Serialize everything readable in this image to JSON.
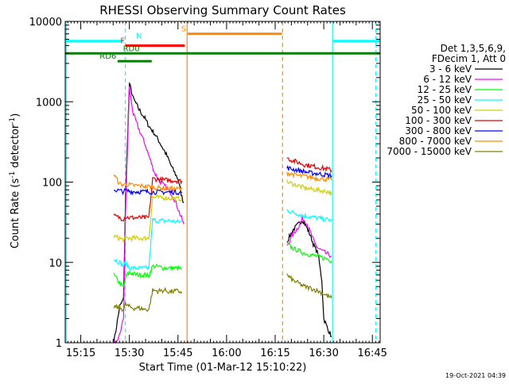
{
  "chart_data": {
    "type": "line",
    "title": "RHESSI Observing Summary Count Rates",
    "xlabel": "Start Time (01-Mar-12 15:10:22)",
    "ylabel_main": "Count Rate (s",
    "ylabel_sup1": "-1",
    "ylabel_mid": " detector",
    "ylabel_sup2": "-1",
    "ylabel_end": ")",
    "footer": "19-Oct-2021 04:39",
    "legend_header": [
      "Det 1,3,5,6,9,",
      "FDecim 1, Att 0"
    ],
    "xlim": [
      15.17,
      16.79
    ],
    "ylim_log10": [
      0,
      4
    ],
    "x_ticks": [
      {
        "label": "15:15",
        "t": 15.25
      },
      {
        "label": "15:30",
        "t": 15.5
      },
      {
        "label": "15:45",
        "t": 15.75
      },
      {
        "label": "16:00",
        "t": 16.0
      },
      {
        "label": "16:15",
        "t": 16.25
      },
      {
        "label": "16:30",
        "t": 16.5
      },
      {
        "label": "16:45",
        "t": 16.75
      }
    ],
    "y_ticks": [
      {
        "label": "1",
        "v": 1
      },
      {
        "label": "10",
        "v": 10
      },
      {
        "label": "100",
        "v": 100
      },
      {
        "label": "1000",
        "v": 1000
      },
      {
        "label": "10000",
        "v": 10000
      }
    ],
    "segments": [
      [
        15.42,
        15.78
      ],
      [
        16.31,
        16.54
      ]
    ],
    "vlines": [
      {
        "t": 15.175,
        "color": "#00ffff",
        "dashed": false
      },
      {
        "t": 15.479,
        "color": "#00ffff",
        "dashed": true
      },
      {
        "t": 15.797,
        "color": "#ff8c00",
        "dashed": false
      },
      {
        "t": 16.288,
        "color": "#ff8c00",
        "dashed": true
      },
      {
        "t": 16.545,
        "color": "#00ffff",
        "dashed": false
      },
      {
        "t": 16.768,
        "color": "#00ffff",
        "dashed": true
      }
    ],
    "flags": [
      {
        "label": "N",
        "color": "#00ffff",
        "segments": [
          [
            15.17,
            15.47
          ],
          [
            16.548,
            16.79
          ]
        ],
        "v": 5700,
        "label_t": 15.55
      },
      {
        "label": "S",
        "color": "#ff8c00",
        "segments": [
          [
            15.8,
            16.285
          ]
        ],
        "v": 7000,
        "label_t": 15.78
      },
      {
        "label": "F",
        "color": "#a05050",
        "segments": [],
        "v": 5000,
        "label_t": 15.465
      },
      {
        "label": "",
        "color": "#ff0000",
        "segments": [
          [
            15.48,
            15.785
          ]
        ],
        "v": 5000,
        "label_t": 15.5
      },
      {
        "label": "RD0",
        "color": "#008000",
        "segments": [
          [
            15.17,
            16.79
          ]
        ],
        "v": 4000,
        "label_t": 15.51
      },
      {
        "label": "RD6",
        "color": "#008000",
        "segments": [
          [
            15.44,
            15.615
          ]
        ],
        "v": 3200,
        "label_t": 15.39
      }
    ],
    "series": [
      {
        "name": "3 - 6 keV",
        "color": "#000000",
        "points": [
          [
            15.42,
            1
          ],
          [
            15.43,
            1.4
          ],
          [
            15.45,
            2.8
          ],
          [
            15.47,
            3.5
          ],
          [
            15.48,
            60
          ],
          [
            15.5,
            1700
          ],
          [
            15.52,
            1100
          ],
          [
            15.55,
            800
          ],
          [
            15.58,
            620
          ],
          [
            15.6,
            500
          ],
          [
            15.63,
            400
          ],
          [
            15.66,
            300
          ],
          [
            15.69,
            220
          ],
          [
            15.72,
            150
          ],
          [
            15.75,
            110
          ],
          [
            15.77,
            65
          ],
          [
            15.78,
            55
          ]
        ],
        "points2": [
          [
            16.31,
            18
          ],
          [
            16.34,
            25
          ],
          [
            16.37,
            30
          ],
          [
            16.39,
            34
          ],
          [
            16.41,
            28
          ],
          [
            16.43,
            22
          ],
          [
            16.45,
            16
          ],
          [
            16.47,
            13
          ],
          [
            16.49,
            6
          ],
          [
            16.5,
            2
          ],
          [
            16.52,
            1.5
          ],
          [
            16.54,
            1.2
          ]
        ]
      },
      {
        "name": "6 - 12 keV",
        "color": "#ff00ff",
        "points": [
          [
            15.42,
            1
          ],
          [
            15.44,
            1
          ],
          [
            15.47,
            2
          ],
          [
            15.48,
            40
          ],
          [
            15.5,
            1500
          ],
          [
            15.52,
            700
          ],
          [
            15.55,
            450
          ],
          [
            15.58,
            300
          ],
          [
            15.61,
            180
          ],
          [
            15.63,
            130
          ],
          [
            15.66,
            100
          ],
          [
            15.69,
            85
          ],
          [
            15.72,
            70
          ],
          [
            15.74,
            55
          ],
          [
            15.76,
            40
          ],
          [
            15.78,
            30
          ]
        ],
        "points2": [
          [
            16.31,
            16
          ],
          [
            16.34,
            22
          ],
          [
            16.37,
            28
          ],
          [
            16.39,
            35
          ],
          [
            16.41,
            32
          ],
          [
            16.43,
            24
          ],
          [
            16.45,
            18
          ],
          [
            16.47,
            15
          ],
          [
            16.49,
            14
          ],
          [
            16.51,
            13
          ],
          [
            16.54,
            12
          ]
        ]
      },
      {
        "name": "12 - 25 keV",
        "color": "#00ff00",
        "points": [
          [
            15.42,
            7
          ],
          [
            15.45,
            5.5
          ],
          [
            15.47,
            4.8
          ],
          [
            15.48,
            6.5
          ],
          [
            15.5,
            7.5
          ],
          [
            15.52,
            7.2
          ],
          [
            15.55,
            7
          ],
          [
            15.58,
            7
          ],
          [
            15.6,
            6.8
          ],
          [
            15.62,
            9
          ],
          [
            15.65,
            8.8
          ],
          [
            15.68,
            8.5
          ],
          [
            15.71,
            8.5
          ],
          [
            15.74,
            8.5
          ],
          [
            15.77,
            8.3
          ]
        ],
        "points2": [
          [
            16.31,
            17
          ],
          [
            16.34,
            15
          ],
          [
            16.37,
            14
          ],
          [
            16.4,
            13
          ],
          [
            16.43,
            12.5
          ],
          [
            16.46,
            12
          ],
          [
            16.49,
            11.5
          ],
          [
            16.52,
            11
          ],
          [
            16.54,
            10.5
          ]
        ]
      },
      {
        "name": "25 - 50 keV",
        "color": "#00ffff",
        "points": [
          [
            15.42,
            11
          ],
          [
            15.45,
            10
          ],
          [
            15.47,
            9
          ],
          [
            15.48,
            10
          ],
          [
            15.5,
            8.5
          ],
          [
            15.52,
            8.5
          ],
          [
            15.55,
            8.5
          ],
          [
            15.58,
            8.5
          ],
          [
            15.6,
            8.5
          ],
          [
            15.62,
            34
          ],
          [
            15.65,
            33
          ],
          [
            15.68,
            33
          ],
          [
            15.71,
            33
          ],
          [
            15.74,
            32
          ],
          [
            15.77,
            32
          ]
        ],
        "points2": [
          [
            16.31,
            45
          ],
          [
            16.34,
            42
          ],
          [
            16.37,
            40
          ],
          [
            16.4,
            38
          ],
          [
            16.43,
            37
          ],
          [
            16.46,
            36
          ],
          [
            16.49,
            35
          ],
          [
            16.52,
            34
          ],
          [
            16.54,
            33
          ]
        ]
      },
      {
        "name": "50 - 100 keV",
        "color": "#d0d000",
        "points": [
          [
            15.42,
            21
          ],
          [
            15.45,
            20
          ],
          [
            15.47,
            19
          ],
          [
            15.48,
            20
          ],
          [
            15.5,
            20
          ],
          [
            15.52,
            20
          ],
          [
            15.55,
            20
          ],
          [
            15.58,
            20
          ],
          [
            15.6,
            20
          ],
          [
            15.62,
            65
          ],
          [
            15.65,
            64
          ],
          [
            15.68,
            64
          ],
          [
            15.71,
            63
          ],
          [
            15.74,
            62
          ],
          [
            15.77,
            62
          ]
        ],
        "points2": [
          [
            16.31,
            100
          ],
          [
            16.34,
            95
          ],
          [
            16.37,
            90
          ],
          [
            16.4,
            85
          ],
          [
            16.43,
            82
          ],
          [
            16.46,
            80
          ],
          [
            16.49,
            78
          ],
          [
            16.52,
            76
          ],
          [
            16.54,
            74
          ]
        ]
      },
      {
        "name": "100 - 300 keV",
        "color": "#e00000",
        "points": [
          [
            15.42,
            38
          ],
          [
            15.45,
            36
          ],
          [
            15.47,
            35
          ],
          [
            15.48,
            37
          ],
          [
            15.5,
            36
          ],
          [
            15.52,
            36
          ],
          [
            15.55,
            36
          ],
          [
            15.58,
            36
          ],
          [
            15.6,
            36
          ],
          [
            15.62,
            110
          ],
          [
            15.65,
            108
          ],
          [
            15.68,
            106
          ],
          [
            15.71,
            105
          ],
          [
            15.74,
            104
          ],
          [
            15.77,
            103
          ]
        ],
        "points2": [
          [
            16.31,
            200
          ],
          [
            16.34,
            185
          ],
          [
            16.37,
            175
          ],
          [
            16.4,
            165
          ],
          [
            16.43,
            160
          ],
          [
            16.46,
            155
          ],
          [
            16.49,
            150
          ],
          [
            16.52,
            145
          ],
          [
            16.54,
            140
          ]
        ]
      },
      {
        "name": "300 - 800 keV",
        "color": "#0000ff",
        "points": [
          [
            15.42,
            80
          ],
          [
            15.45,
            78
          ],
          [
            15.47,
            76
          ],
          [
            15.48,
            78
          ],
          [
            15.5,
            77
          ],
          [
            15.52,
            76
          ],
          [
            15.55,
            76
          ],
          [
            15.58,
            76
          ],
          [
            15.6,
            76
          ],
          [
            15.62,
            75
          ],
          [
            15.65,
            75
          ],
          [
            15.68,
            75
          ],
          [
            15.71,
            75
          ],
          [
            15.74,
            75
          ],
          [
            15.77,
            74
          ]
        ],
        "points2": [
          [
            16.31,
            150
          ],
          [
            16.34,
            145
          ],
          [
            16.37,
            140
          ],
          [
            16.4,
            135
          ],
          [
            16.43,
            130
          ],
          [
            16.46,
            128
          ],
          [
            16.49,
            125
          ],
          [
            16.52,
            122
          ],
          [
            16.54,
            120
          ]
        ]
      },
      {
        "name": "800 - 7000 keV",
        "color": "#ff8c00",
        "points": [
          [
            15.42,
            125
          ],
          [
            15.45,
            95
          ],
          [
            15.47,
            92
          ],
          [
            15.48,
            94
          ],
          [
            15.5,
            92
          ],
          [
            15.52,
            91
          ],
          [
            15.55,
            90
          ],
          [
            15.58,
            89
          ],
          [
            15.6,
            88
          ],
          [
            15.62,
            86
          ],
          [
            15.65,
            85
          ],
          [
            15.68,
            84
          ],
          [
            15.71,
            83
          ],
          [
            15.74,
            82
          ],
          [
            15.77,
            82
          ]
        ],
        "points2": [
          [
            16.31,
            130
          ],
          [
            16.34,
            125
          ],
          [
            16.37,
            120
          ],
          [
            16.4,
            118
          ],
          [
            16.43,
            115
          ],
          [
            16.46,
            112
          ],
          [
            16.49,
            110
          ],
          [
            16.52,
            108
          ],
          [
            16.54,
            106
          ]
        ]
      },
      {
        "name": "7000 - 15000 keV",
        "color": "#808000",
        "points": [
          [
            15.42,
            2.8
          ],
          [
            15.45,
            2.7
          ],
          [
            15.47,
            2.6
          ],
          [
            15.48,
            3
          ],
          [
            15.5,
            2.8
          ],
          [
            15.52,
            2.7
          ],
          [
            15.55,
            2.7
          ],
          [
            15.58,
            2.6
          ],
          [
            15.6,
            2.6
          ],
          [
            15.62,
            4.5
          ],
          [
            15.65,
            4.4
          ],
          [
            15.68,
            4.5
          ],
          [
            15.71,
            4.3
          ],
          [
            15.74,
            4.4
          ],
          [
            15.77,
            4.3
          ]
        ],
        "points2": [
          [
            16.31,
            7
          ],
          [
            16.34,
            6
          ],
          [
            16.37,
            5.5
          ],
          [
            16.4,
            5
          ],
          [
            16.43,
            4.8
          ],
          [
            16.46,
            4.5
          ],
          [
            16.49,
            4.2
          ],
          [
            16.52,
            3.8
          ],
          [
            16.54,
            3.6
          ]
        ]
      }
    ]
  }
}
